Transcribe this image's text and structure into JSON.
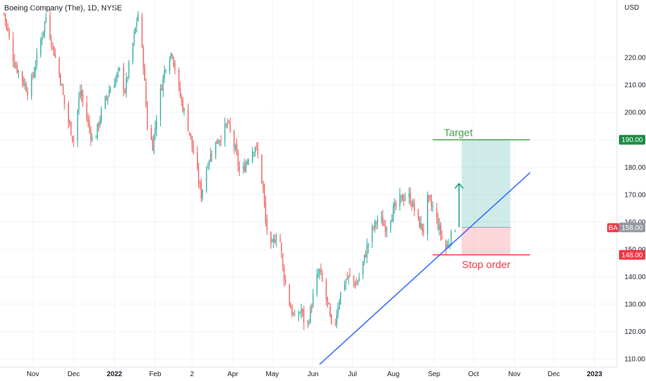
{
  "header": {
    "title": "Boeing Company (The), 1D, NYSE",
    "currency": "USD"
  },
  "chart_data": {
    "type": "candlestick",
    "title": "Boeing Company (The), 1D, NYSE",
    "ylabel": "USD",
    "ylim": [
      107,
      241
    ],
    "y_ticks": [
      110,
      120,
      130,
      140,
      150,
      160,
      170,
      180,
      190,
      200,
      210,
      220
    ],
    "y_tick_labels": [
      "110.00",
      "120.00",
      "130.00",
      "140.00",
      "150.00",
      "160.00",
      "170.00",
      "180.00",
      "190.00",
      "200.00",
      "210.00",
      "220.00"
    ],
    "x_ticks": [
      "Nov",
      "Dec",
      "2022",
      "Feb",
      "2",
      "Apr",
      "May",
      "Jun",
      "Jul",
      "Aug",
      "Sep",
      "Oct",
      "Nov",
      "Dec",
      "2023"
    ],
    "x_tick_days": [
      22,
      53,
      84,
      115,
      143,
      174,
      204,
      235,
      265,
      296,
      327,
      357,
      388,
      418,
      449
    ],
    "last_day": 343,
    "up_color": "#26a69a",
    "down_color": "#ef5350",
    "price_path": [
      {
        "day": 0,
        "price": 236
      },
      {
        "day": 8,
        "price": 218
      },
      {
        "day": 14,
        "price": 212
      },
      {
        "day": 19,
        "price": 207
      },
      {
        "day": 26,
        "price": 222
      },
      {
        "day": 32,
        "price": 235
      },
      {
        "day": 38,
        "price": 222
      },
      {
        "day": 43,
        "price": 212
      },
      {
        "day": 47,
        "price": 200
      },
      {
        "day": 53,
        "price": 190
      },
      {
        "day": 58,
        "price": 208
      },
      {
        "day": 64,
        "price": 196
      },
      {
        "day": 68,
        "price": 188
      },
      {
        "day": 75,
        "price": 202
      },
      {
        "day": 82,
        "price": 210
      },
      {
        "day": 88,
        "price": 215
      },
      {
        "day": 92,
        "price": 208
      },
      {
        "day": 98,
        "price": 225
      },
      {
        "day": 102,
        "price": 236
      },
      {
        "day": 106,
        "price": 218
      },
      {
        "day": 109,
        "price": 195
      },
      {
        "day": 113,
        "price": 188
      },
      {
        "day": 118,
        "price": 205
      },
      {
        "day": 124,
        "price": 220
      },
      {
        "day": 128,
        "price": 222
      },
      {
        "day": 132,
        "price": 210
      },
      {
        "day": 136,
        "price": 202
      },
      {
        "day": 141,
        "price": 193
      },
      {
        "day": 146,
        "price": 180
      },
      {
        "day": 150,
        "price": 170
      },
      {
        "day": 155,
        "price": 182
      },
      {
        "day": 160,
        "price": 188
      },
      {
        "day": 166,
        "price": 192
      },
      {
        "day": 170,
        "price": 196
      },
      {
        "day": 176,
        "price": 186
      },
      {
        "day": 180,
        "price": 176
      },
      {
        "day": 185,
        "price": 183
      },
      {
        "day": 191,
        "price": 188
      },
      {
        "day": 194,
        "price": 182
      },
      {
        "day": 197,
        "price": 172
      },
      {
        "day": 199,
        "price": 160
      },
      {
        "day": 203,
        "price": 150
      },
      {
        "day": 206,
        "price": 154
      },
      {
        "day": 209,
        "price": 158
      },
      {
        "day": 212,
        "price": 143
      },
      {
        "day": 216,
        "price": 132
      },
      {
        "day": 221,
        "price": 124
      },
      {
        "day": 226,
        "price": 128
      },
      {
        "day": 230,
        "price": 120
      },
      {
        "day": 234,
        "price": 130
      },
      {
        "day": 237,
        "price": 138
      },
      {
        "day": 240,
        "price": 142
      },
      {
        "day": 243,
        "price": 136
      },
      {
        "day": 247,
        "price": 128
      },
      {
        "day": 250,
        "price": 118
      },
      {
        "day": 254,
        "price": 130
      },
      {
        "day": 258,
        "price": 138
      },
      {
        "day": 263,
        "price": 140
      },
      {
        "day": 268,
        "price": 137
      },
      {
        "day": 273,
        "price": 145
      },
      {
        "day": 279,
        "price": 156
      },
      {
        "day": 285,
        "price": 162
      },
      {
        "day": 290,
        "price": 158
      },
      {
        "day": 296,
        "price": 164
      },
      {
        "day": 301,
        "price": 168
      },
      {
        "day": 307,
        "price": 170
      },
      {
        "day": 311,
        "price": 166
      },
      {
        "day": 315,
        "price": 160
      },
      {
        "day": 319,
        "price": 157
      },
      {
        "day": 322,
        "price": 168
      },
      {
        "day": 326,
        "price": 165
      },
      {
        "day": 330,
        "price": 159
      },
      {
        "day": 333,
        "price": 154
      },
      {
        "day": 336,
        "price": 150
      },
      {
        "day": 340,
        "price": 155
      },
      {
        "day": 343,
        "price": 158
      }
    ],
    "trendline": [
      {
        "day": 240,
        "price": 108
      },
      {
        "day": 400,
        "price": 178
      }
    ],
    "target": {
      "label": "Target",
      "price": 190,
      "price_label": "190.00",
      "color": "#43a047"
    },
    "stop": {
      "label": "Stop order",
      "price": 148,
      "price_label": "148.00",
      "color": "#f23645"
    },
    "entry": {
      "price": 158,
      "price_label": "158.00"
    },
    "position": {
      "start_day": 348,
      "end_day": 385,
      "line_start_day": 326,
      "line_end_day": 400
    },
    "arrow": {
      "day": 346,
      "from_price": 158,
      "to_price": 174,
      "color": "#089981"
    },
    "last_price": {
      "symbol": "BA",
      "price": 158,
      "price_label": "158.00"
    }
  }
}
